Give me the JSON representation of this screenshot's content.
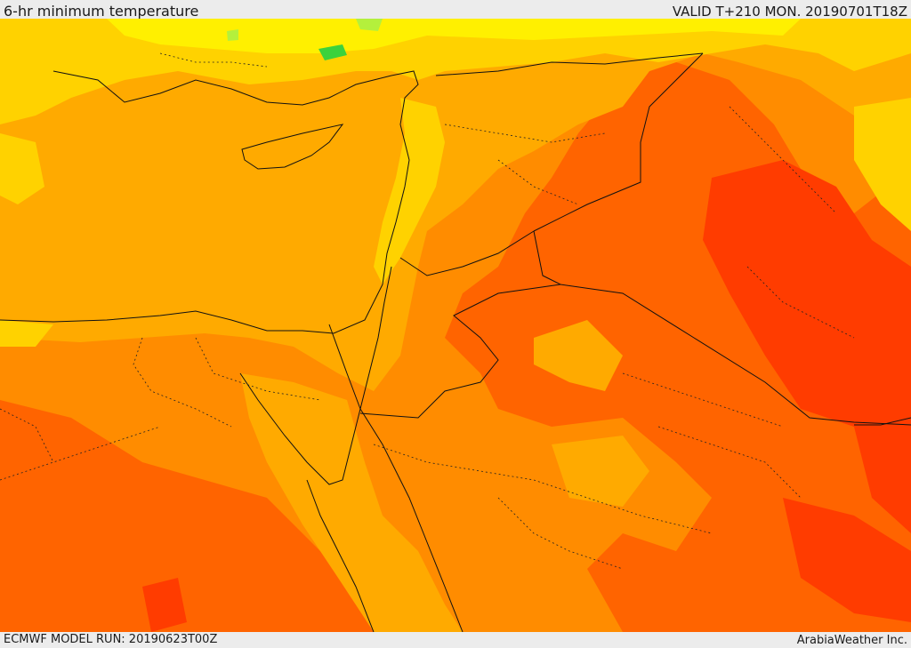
{
  "header": {
    "title": "6-hr minimum temperature",
    "valid": "VALID T+210 MON. 20190701T18Z"
  },
  "footer": {
    "model_run": "ECMWF MODEL RUN: 20190623T00Z",
    "credit": "ArabiaWeather Inc."
  },
  "map": {
    "variable": "6-hr minimum temperature",
    "palette": {
      "green": "#3cd23c",
      "light_green": "#b4f03c",
      "yellow_light": "#fff000",
      "yellow": "#ffd200",
      "gold": "#ffaa00",
      "orange": "#ff8c00",
      "dark_orange": "#ff6400",
      "red_orange": "#ff3c00",
      "border_color": "#111111"
    }
  }
}
